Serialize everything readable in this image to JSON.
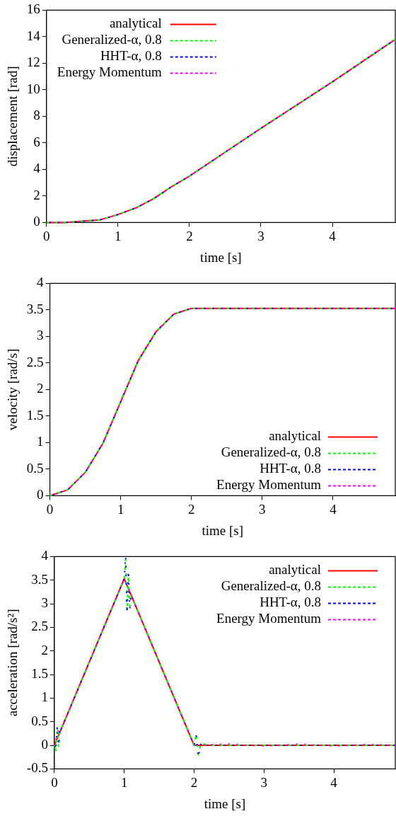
{
  "chart_data": [
    {
      "type": "line",
      "xlabel": "time [s]",
      "ylabel": "displacement [rad]",
      "xlim": [
        0,
        4.88
      ],
      "xticks": [
        0,
        1,
        2,
        3,
        4
      ],
      "ylim": [
        0,
        16
      ],
      "yticks": [
        0,
        2,
        4,
        6,
        8,
        10,
        12,
        14,
        16
      ],
      "legend": "top left",
      "marker": "none",
      "x": [
        0,
        0.25,
        0.5,
        0.75,
        1,
        1.25,
        1.5,
        1.75,
        2,
        3,
        4,
        4.88
      ],
      "series": [
        {
          "name": "analytical",
          "color": "#ff0000",
          "line_style": "solid",
          "values": [
            0,
            0,
            0.1,
            0.2,
            0.6,
            1.1,
            1.8,
            2.7,
            3.5,
            7.1,
            10.6,
            13.8
          ]
        },
        {
          "name": "Generalized-α, 0.8",
          "color": "#00ff00",
          "line_style": "dashed",
          "values": [
            0,
            0,
            0.1,
            0.2,
            0.6,
            1.1,
            1.8,
            2.7,
            3.5,
            7.1,
            10.6,
            13.8
          ]
        },
        {
          "name": "HHT-α, 0.8",
          "color": "#0000ff",
          "line_style": "dotted",
          "values": [
            0,
            0,
            0.1,
            0.2,
            0.6,
            1.1,
            1.8,
            2.7,
            3.5,
            7.1,
            10.6,
            13.8
          ]
        },
        {
          "name": "Energy Momentum",
          "color": "#ff00ff",
          "line_style": "dotted",
          "values": [
            0,
            0,
            0.1,
            0.2,
            0.6,
            1.1,
            1.8,
            2.7,
            3.5,
            7.1,
            10.6,
            13.8
          ]
        }
      ]
    },
    {
      "type": "line",
      "xlabel": "time [s]",
      "ylabel": "velocity [rad/s]",
      "xlim": [
        0,
        4.88
      ],
      "xticks": [
        0,
        1,
        2,
        3,
        4
      ],
      "ylim": [
        0,
        4
      ],
      "yticks": [
        0,
        0.5,
        1,
        1.5,
        2,
        2.5,
        3,
        3.5,
        4
      ],
      "legend": "bottom right",
      "marker": "none",
      "x": [
        0,
        0.25,
        0.5,
        0.75,
        1,
        1.25,
        1.5,
        1.75,
        2,
        3,
        4,
        4.88
      ],
      "series": [
        {
          "name": "analytical",
          "color": "#ff0000",
          "line_style": "solid",
          "values": [
            0,
            0.11,
            0.44,
            0.99,
            1.77,
            2.55,
            3.09,
            3.42,
            3.53,
            3.53,
            3.53,
            3.53
          ]
        },
        {
          "name": "Generalized-α, 0.8",
          "color": "#00ff00",
          "line_style": "dashed",
          "values": [
            0,
            0.11,
            0.44,
            0.99,
            1.77,
            2.55,
            3.09,
            3.42,
            3.53,
            3.53,
            3.53,
            3.53
          ]
        },
        {
          "name": "HHT-α, 0.8",
          "color": "#0000ff",
          "line_style": "dotted",
          "values": [
            0,
            0.11,
            0.44,
            0.99,
            1.77,
            2.55,
            3.09,
            3.42,
            3.53,
            3.53,
            3.53,
            3.53
          ]
        },
        {
          "name": "Energy Momentum",
          "color": "#ff00ff",
          "line_style": "dotted",
          "values": [
            0,
            0.11,
            0.44,
            0.99,
            1.77,
            2.55,
            3.09,
            3.42,
            3.53,
            3.53,
            3.53,
            3.53
          ]
        }
      ]
    },
    {
      "type": "line",
      "xlabel": "time [s]",
      "ylabel": "acceleration [rad/s²]",
      "xlim": [
        0,
        4.88
      ],
      "xticks": [
        0,
        1,
        2,
        3,
        4
      ],
      "ylim": [
        -0.5,
        4
      ],
      "yticks": [
        -0.5,
        0,
        0.5,
        1,
        1.5,
        2,
        2.5,
        3,
        3.5,
        4
      ],
      "legend": "top right",
      "marker": "none",
      "series": [
        {
          "name": "analytical",
          "color": "#ff0000",
          "line_style": "solid",
          "x": [
            0,
            1,
            2,
            4.88
          ],
          "values": [
            0,
            3.53,
            0,
            0
          ]
        },
        {
          "name": "Generalized-α, 0.8",
          "color": "#00ff00",
          "line_style": "dashed",
          "x": [
            0,
            0.02,
            0.04,
            0.06,
            0.08,
            0.1,
            1,
            1.02,
            1.04,
            1.06,
            1.08,
            1.1,
            1.15,
            2,
            2.03,
            2.06,
            2.1,
            2.2,
            4.88
          ],
          "values": [
            0,
            -0.15,
            0.4,
            -0.05,
            0.35,
            0.35,
            3.53,
            3.95,
            2.85,
            3.6,
            2.95,
            3.15,
            3,
            0,
            0.25,
            -0.2,
            0.05,
            0,
            0
          ]
        },
        {
          "name": "HHT-α, 0.8",
          "color": "#0000ff",
          "line_style": "dotted",
          "x": [
            0,
            0.02,
            0.04,
            0.06,
            0.08,
            0.1,
            1,
            1.02,
            1.04,
            1.06,
            1.08,
            1.1,
            1.15,
            2,
            2.03,
            2.06,
            2.1,
            2.2,
            4.88
          ],
          "values": [
            0.05,
            -0.1,
            0.4,
            0,
            0.4,
            0.35,
            3.53,
            4,
            2.8,
            3.7,
            2.9,
            3.2,
            3,
            0,
            0.2,
            -0.25,
            0.05,
            0,
            0
          ]
        },
        {
          "name": "Energy Momentum",
          "color": "#ff00ff",
          "line_style": "dotted",
          "x": [
            0,
            0.05,
            0.1,
            1,
            2,
            2.5,
            3,
            3.5,
            4,
            4.5,
            4.88
          ],
          "values": [
            0,
            0.3,
            0.35,
            3.53,
            0,
            0.03,
            -0.02,
            0.03,
            -0.02,
            0.02,
            0
          ]
        }
      ]
    }
  ]
}
